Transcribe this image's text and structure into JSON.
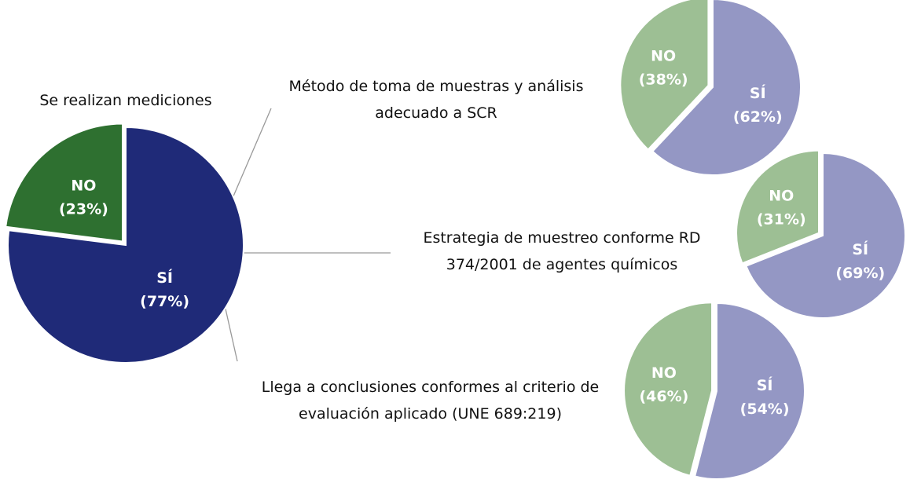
{
  "chart_data": [
    {
      "type": "pie",
      "title": "Se realizan mediciones",
      "categories": [
        "SÍ",
        "NO"
      ],
      "values": [
        77,
        23
      ],
      "value_labels": [
        "(77%)",
        "(23%)"
      ],
      "colors": [
        "#1f2a78",
        "#2e7030"
      ]
    },
    {
      "type": "pie",
      "title": "Método de toma de muestras y análisis adecuado a SCR",
      "categories": [
        "SÍ",
        "NO"
      ],
      "values": [
        62,
        38
      ],
      "value_labels": [
        "(62%)",
        "(38%)"
      ],
      "colors": [
        "#9497c4",
        "#9dbf94"
      ]
    },
    {
      "type": "pie",
      "title": "Estrategia de muestreo conforme RD 374/2001 de agentes químicos",
      "categories": [
        "SÍ",
        "NO"
      ],
      "values": [
        69,
        31
      ],
      "value_labels": [
        "(69%)",
        "(31%)"
      ],
      "colors": [
        "#9497c4",
        "#9dbf94"
      ]
    },
    {
      "type": "pie",
      "title": "Llega a conclusiones conformes al criterio de evaluación aplicado (UNE 689:219)",
      "categories": [
        "SÍ",
        "NO"
      ],
      "values": [
        54,
        46
      ],
      "value_labels": [
        "(54%)",
        "(46%)"
      ],
      "colors": [
        "#9497c4",
        "#9dbf94"
      ]
    }
  ]
}
